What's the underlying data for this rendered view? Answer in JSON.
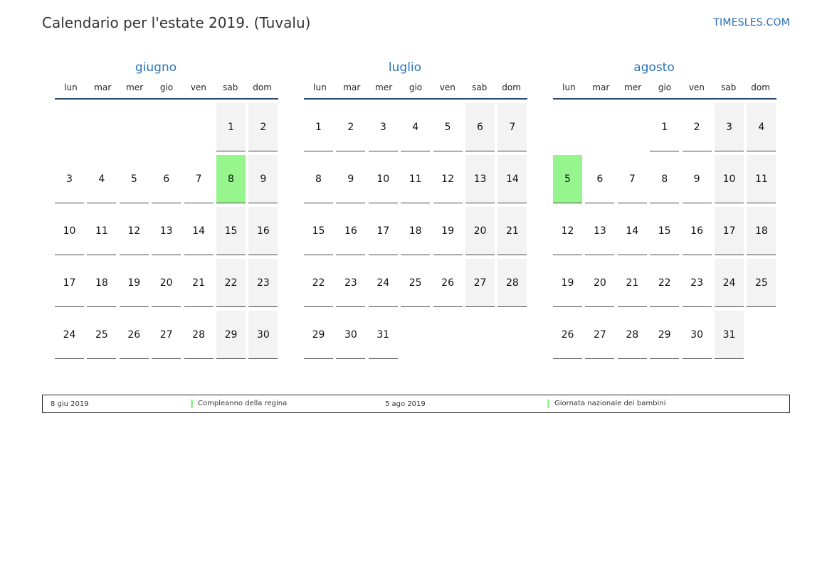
{
  "header": {
    "title": "Calendario per l'estate 2019. (Tuvalu)",
    "site": "TIMESLES.COM"
  },
  "weekday_labels": [
    "lun",
    "mar",
    "mer",
    "gio",
    "ven",
    "sab",
    "dom"
  ],
  "months": [
    {
      "name": "giugno",
      "start_weekday": 5,
      "days": 30,
      "holidays": [
        8
      ]
    },
    {
      "name": "luglio",
      "start_weekday": 0,
      "days": 31,
      "holidays": []
    },
    {
      "name": "agosto",
      "start_weekday": 3,
      "days": 31,
      "holidays": [
        5
      ]
    }
  ],
  "legend": [
    {
      "date": "8 giu 2019",
      "name": "Compleanno della regina"
    },
    {
      "date": "5 ago 2019",
      "name": "Giornata nazionale dei bambini"
    }
  ],
  "colors": {
    "holiday": "#97f58e",
    "weekend": "#f3f3f3",
    "month_title": "#2a74b5"
  }
}
